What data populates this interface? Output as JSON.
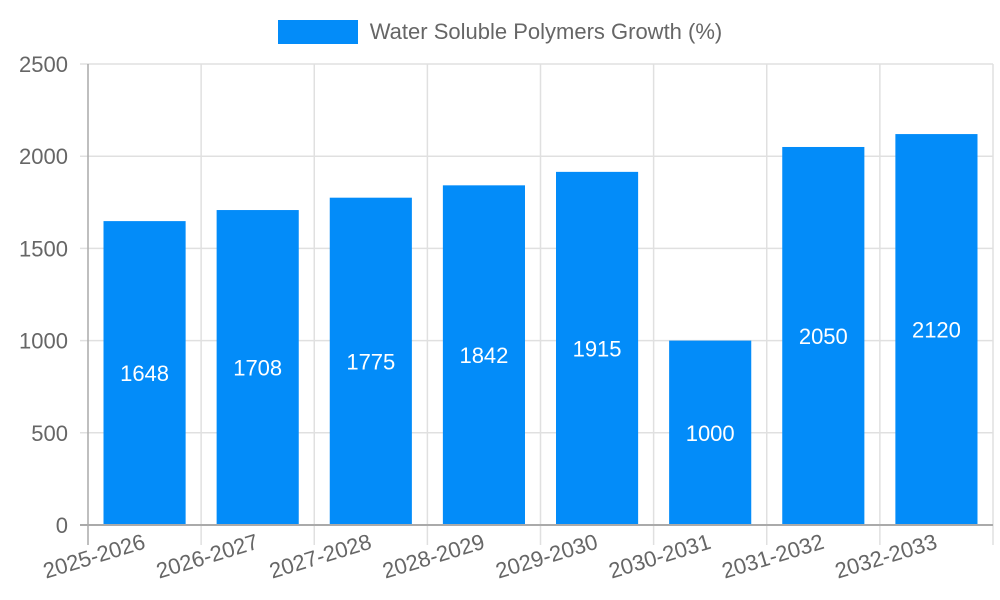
{
  "legend": {
    "label": "Water Soluble Polymers Growth (%)",
    "color": "#038cf9"
  },
  "chart_data": {
    "type": "bar",
    "title": "",
    "xlabel": "",
    "ylabel": "",
    "ylim": [
      0,
      2500
    ],
    "yticks": [
      0,
      500,
      1000,
      1500,
      2000,
      2500
    ],
    "grid": true,
    "legend_position": "top",
    "categories": [
      "2025-2026",
      "2026-2027",
      "2027-2028",
      "2028-2029",
      "2029-2030",
      "2030-2031",
      "2031-2032",
      "2032-2033"
    ],
    "series": [
      {
        "name": "Water Soluble Polymers Growth (%)",
        "color": "#038cf9",
        "values": [
          1648,
          1708,
          1775,
          1842,
          1915,
          1000,
          2050,
          2120
        ]
      }
    ]
  }
}
